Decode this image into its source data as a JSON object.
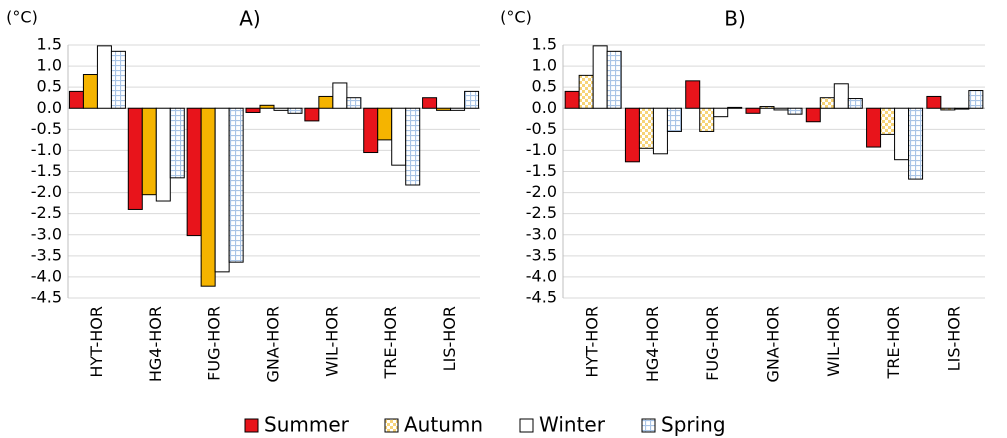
{
  "chart_data": [
    {
      "type": "bar",
      "title": "A)",
      "y_label": "(°C)",
      "categories": [
        "HYT-HOR",
        "HG4-HOR",
        "FUG-HOR",
        "GNA-HOR",
        "WIL-HOR",
        "TRE-HOR",
        "LIS-HOR"
      ],
      "series": [
        {
          "name": "Summer",
          "color": "#e8141b",
          "values": [
            0.4,
            -2.4,
            -3.02,
            -0.1,
            -0.3,
            -1.05,
            0.25
          ]
        },
        {
          "name": "Autumn",
          "color": "#f5b400",
          "values": [
            0.8,
            -2.05,
            -4.22,
            0.07,
            0.28,
            -0.75,
            -0.05
          ]
        },
        {
          "name": "Winter",
          "color": "#ffffff",
          "values": [
            1.48,
            -2.2,
            -3.88,
            -0.05,
            0.6,
            -1.35,
            -0.05
          ]
        },
        {
          "name": "Spring",
          "color": "#d6e4f4",
          "pattern": "grid",
          "values": [
            1.35,
            -1.65,
            -3.65,
            -0.12,
            0.25,
            -1.82,
            0.4
          ]
        }
      ],
      "ylim": [
        -4.5,
        1.5
      ],
      "yticks": [
        1.5,
        {
          "value": 1,
          "label": "1.0"
        },
        0.5,
        {
          "value": 0,
          "label": "0.0"
        },
        -0.5,
        {
          "value": -1,
          "label": "-1.0"
        },
        -1.5,
        {
          "value": -2,
          "label": "-2.0"
        },
        -2.5,
        {
          "value": -3,
          "label": "-3.0"
        },
        -3.5,
        {
          "value": -4,
          "label": "-4.0"
        },
        -4.5
      ],
      "grid": true
    },
    {
      "type": "bar",
      "title": "B)",
      "y_label": "(°C)",
      "categories": [
        "HYT-HOR",
        "HG4-HOR",
        "FUG-HOR",
        "GNA-HOR",
        "WIL-HOR",
        "TRE-HOR",
        "LIS-HOR"
      ],
      "series": [
        {
          "color": "#e8141b",
          "values": [
            0.4,
            -1.27,
            0.65,
            -0.12,
            -0.32,
            -0.92,
            0.28
          ]
        },
        {
          "color": "#fde59a",
          "pattern": "checker",
          "values": [
            0.78,
            -0.95,
            -0.55,
            0.04,
            0.25,
            -0.62,
            -0.04
          ]
        },
        {
          "color": "#ffffff",
          "values": [
            1.48,
            -1.08,
            -0.2,
            -0.04,
            0.58,
            -1.22,
            -0.02
          ]
        },
        {
          "color": "#d6e4f4",
          "pattern": "grid",
          "values": [
            1.35,
            -0.55,
            0.02,
            -0.14,
            0.23,
            -1.68,
            0.42
          ]
        }
      ],
      "ylim": [
        -4.5,
        1.5
      ],
      "yticks": [
        1.5,
        {
          "value": 1,
          "label": "1.0"
        },
        0.5,
        {
          "value": 0,
          "label": "0.0"
        },
        -0.5,
        {
          "value": -1,
          "label": "-1.0"
        },
        -1.5,
        {
          "value": -2,
          "label": "-2.0"
        },
        -2.5,
        {
          "value": -3,
          "label": "-3.0"
        },
        -3.5,
        {
          "value": -4,
          "label": "-4.0"
        },
        -4.5
      ],
      "grid": true
    }
  ]
}
